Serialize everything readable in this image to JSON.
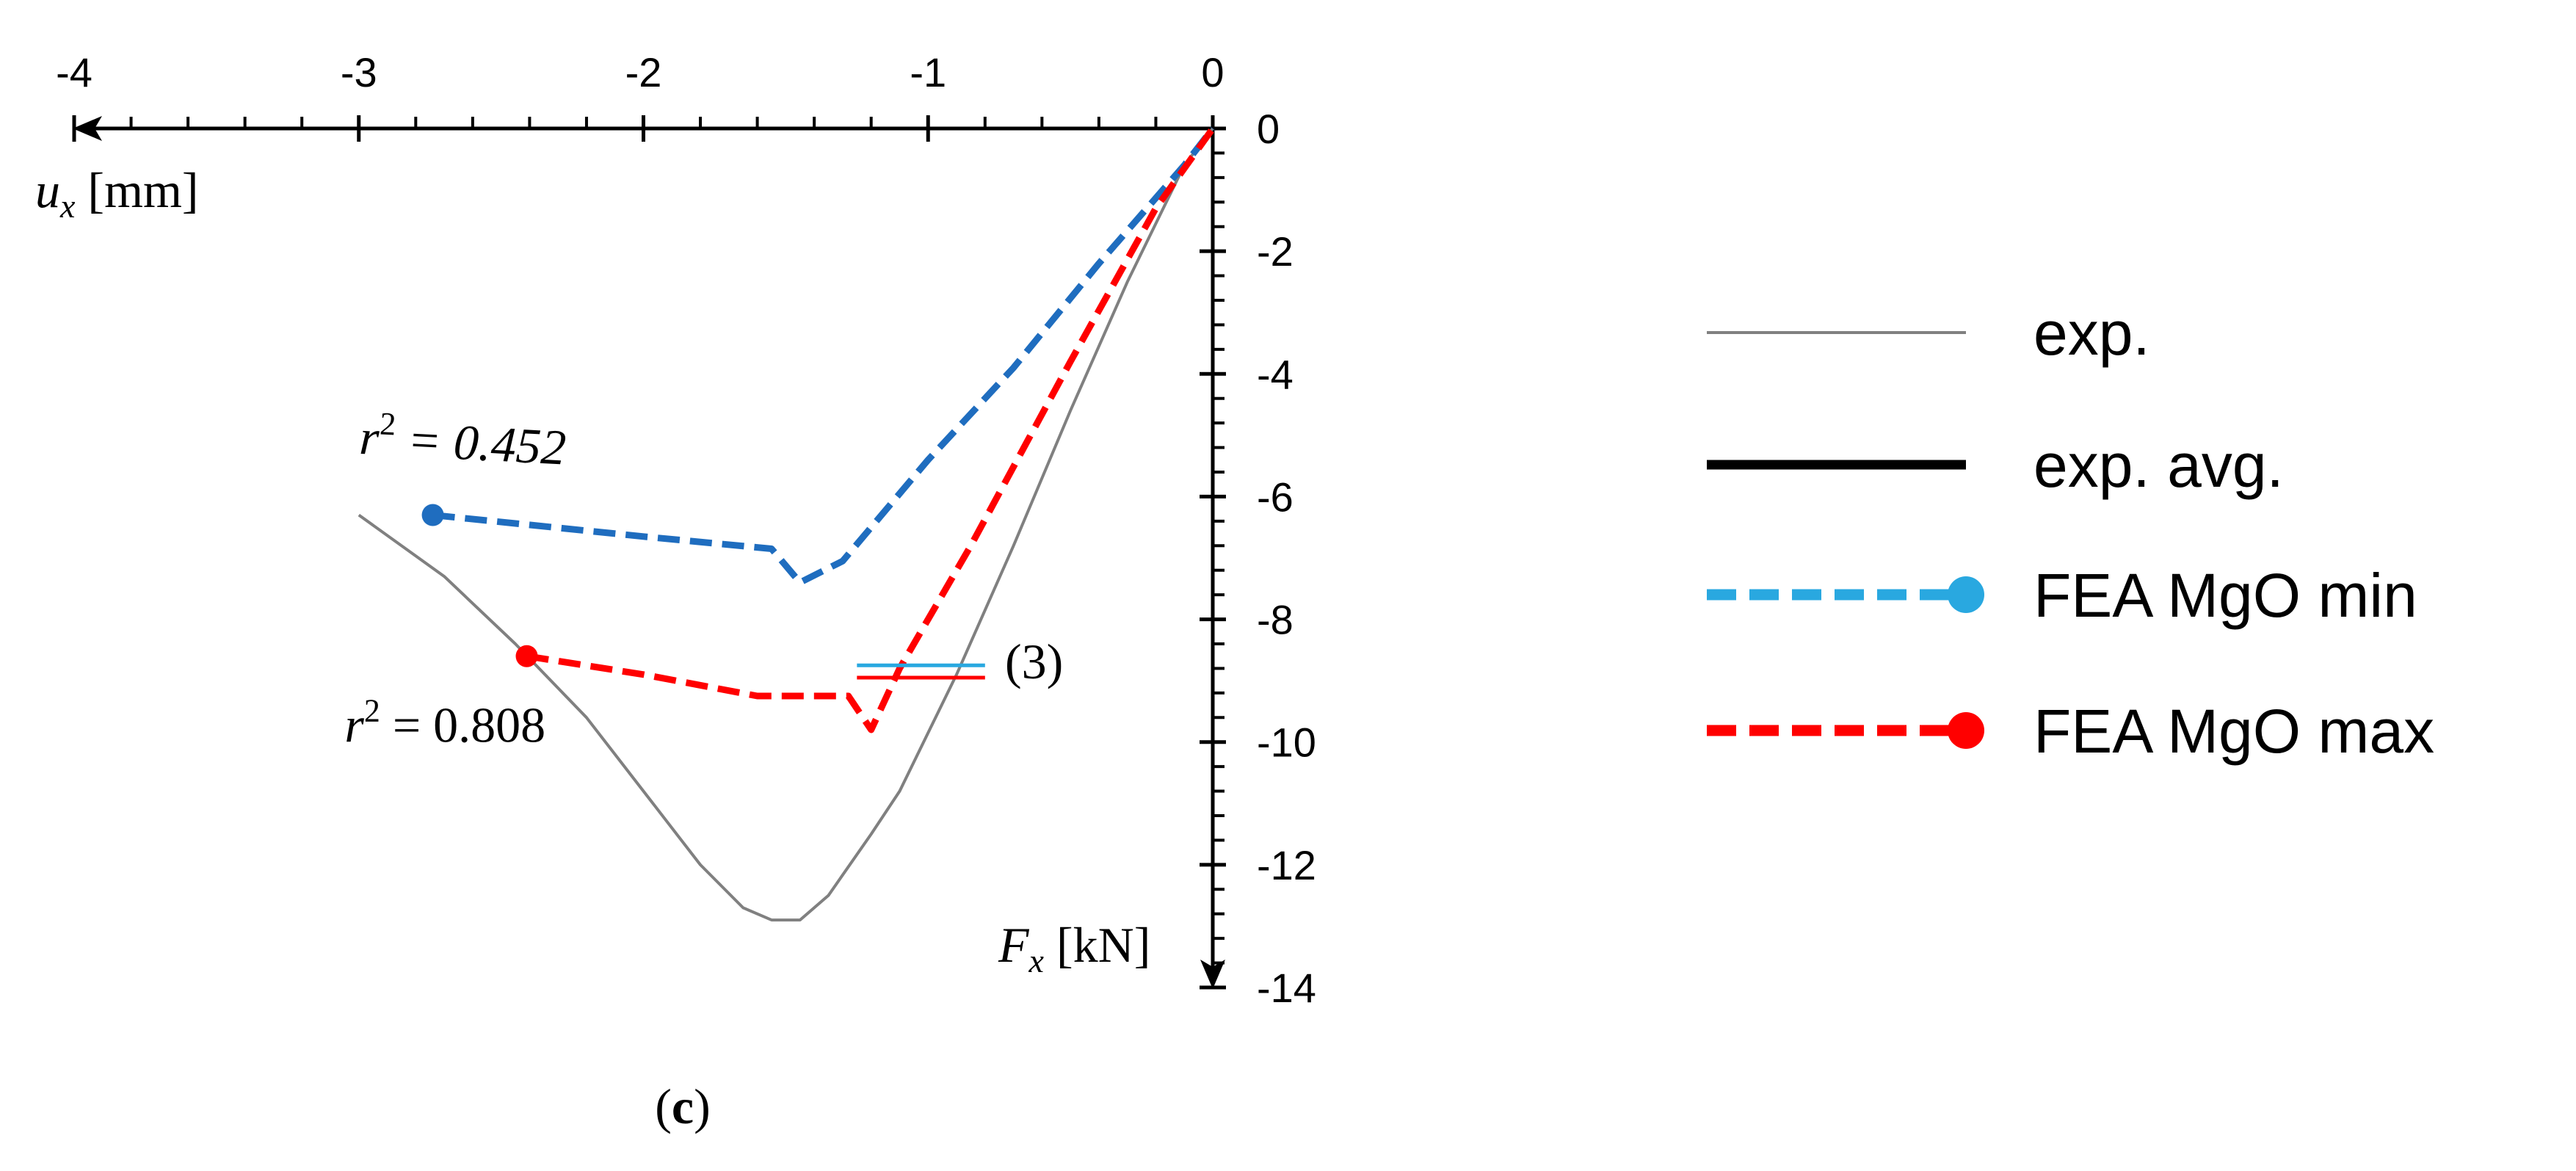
{
  "chart_data": {
    "type": "line",
    "panel_label_open": "(",
    "panel_label_letter": "c",
    "panel_label_close": ")",
    "x_axis": {
      "symbol": "u",
      "subscript": "x",
      "unit": "[mm]",
      "range": [
        -4,
        0
      ],
      "ticks": [
        -4,
        -3,
        -2,
        -1,
        0
      ],
      "tick_labels": [
        "-4",
        "-3",
        "-2",
        "-1",
        "0"
      ],
      "minor_step": 0.2
    },
    "y_axis": {
      "symbol": "F",
      "subscript": "x",
      "unit": "[kN]",
      "range": [
        -14,
        0
      ],
      "ticks": [
        0,
        -2,
        -4,
        -6,
        -8,
        -10,
        -12,
        -14
      ],
      "tick_labels": [
        "0",
        "-2",
        "-4",
        "-6",
        "-8",
        "-10",
        "-12",
        "-14"
      ],
      "minor_step": 0.4
    },
    "series": [
      {
        "name": "exp.",
        "color": "#808080",
        "style": "solid-thin",
        "x": [
          -3.0,
          -2.7,
          -2.45,
          -2.2,
          -2.0,
          -1.8,
          -1.65,
          -1.55,
          -1.45,
          -1.35,
          -1.2,
          -1.1,
          -0.9,
          -0.7,
          -0.5,
          -0.3,
          -0.1,
          0.0
        ],
        "y": [
          -6.3,
          -7.3,
          -8.4,
          -9.6,
          -10.8,
          -12.0,
          -12.7,
          -12.9,
          -12.9,
          -12.5,
          -11.5,
          -10.8,
          -8.9,
          -6.8,
          -4.6,
          -2.5,
          -0.6,
          0.0
        ]
      },
      {
        "name": "exp. avg.",
        "color": "#000000",
        "style": "solid-thick",
        "x": [],
        "y": []
      },
      {
        "name": "FEA MgO min",
        "color": "#1f6dbf",
        "legend_color": "#29a8e0",
        "style": "dashed-marker",
        "x": [
          -2.74,
          -2.0,
          -1.55,
          -1.45,
          -1.3,
          -1.0,
          -0.7,
          -0.4,
          -0.1,
          0.0
        ],
        "y": [
          -6.3,
          -6.65,
          -6.85,
          -7.4,
          -7.05,
          -5.4,
          -3.9,
          -2.2,
          -0.6,
          0.0
        ]
      },
      {
        "name": "FEA MgO max",
        "color": "#ff0000",
        "legend_color": "#ff0000",
        "style": "dashed-marker",
        "x": [
          -2.41,
          -2.0,
          -1.6,
          -1.4,
          -1.28,
          -1.2,
          -1.1,
          -0.85,
          -0.5,
          -0.2,
          0.0
        ],
        "y": [
          -8.6,
          -8.9,
          -9.25,
          -9.25,
          -9.25,
          -9.8,
          -8.8,
          -6.8,
          -3.8,
          -1.3,
          0.0
        ]
      }
    ],
    "annotations": [
      {
        "prefix": "r",
        "sup": "2",
        "text": " = 0.452",
        "x": -3.0,
        "y": -5.3,
        "rotate": 3
      },
      {
        "prefix": "r",
        "sup": "2",
        "text": " = 0.808",
        "x": -3.05,
        "y": -10.0,
        "rotate": 0
      }
    ],
    "marker_3": {
      "label": "(3)",
      "x_start": -1.25,
      "x_end": -0.8,
      "y_blue": -8.75,
      "y_red": -8.95,
      "label_x": -0.73,
      "label_y": -8.7
    },
    "legend": [
      {
        "label": "exp.",
        "color": "#808080",
        "style": "solid-thin"
      },
      {
        "label": "exp. avg.",
        "color": "#000000",
        "style": "solid-thick"
      },
      {
        "label": "FEA MgO min",
        "color": "#29a8e0",
        "style": "dashed-marker"
      },
      {
        "label": "FEA MgO max",
        "color": "#ff0000",
        "style": "dashed-marker"
      }
    ],
    "legend_position": "right"
  }
}
